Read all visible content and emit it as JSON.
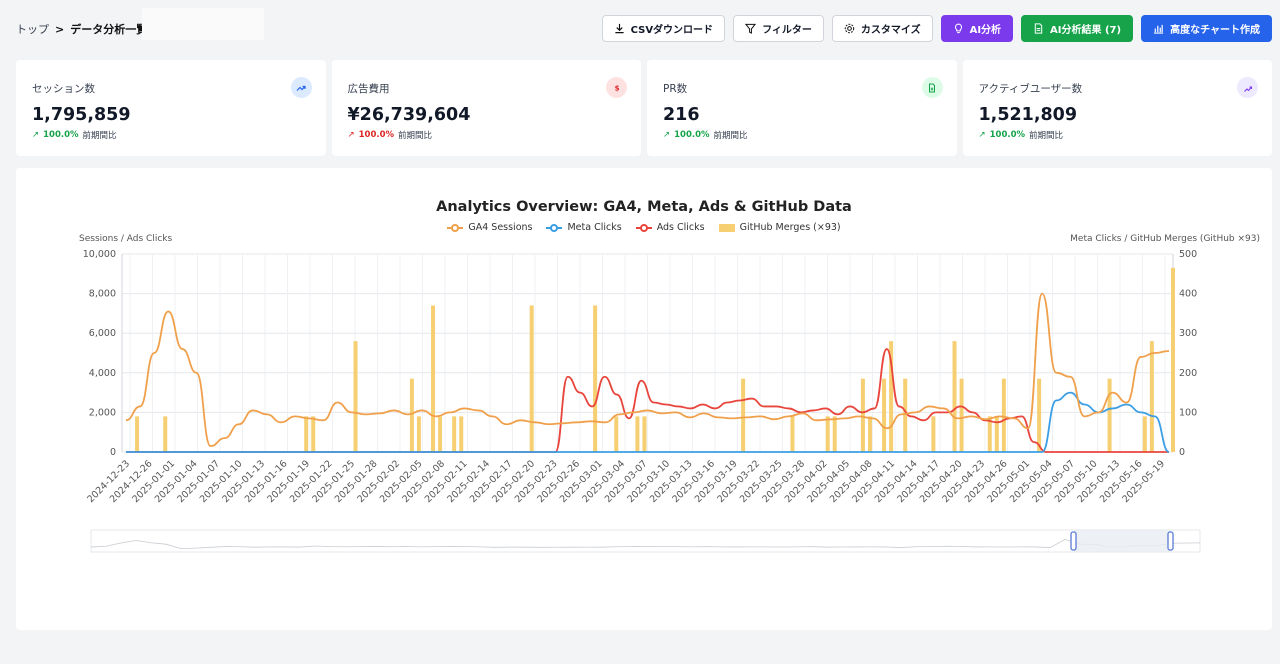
{
  "breadcrumb": {
    "home": "トップ",
    "sep1": ">",
    "current": "データ分析一覧",
    "sep2": ">"
  },
  "actions": {
    "csv": "CSVダウンロード",
    "filter": "フィルター",
    "customize": "カスタマイズ",
    "ai_analysis": "AI分析",
    "ai_results": "AI分析結果 (7)",
    "advanced_chart": "高度なチャート作成"
  },
  "kpis": [
    {
      "label": "セッション数",
      "value": "1,795,859",
      "change": "100.0%",
      "period": "前期間比",
      "trend": "up",
      "icon": "trending-up-icon",
      "color": "#2563eb",
      "bg": "#dbeafe"
    },
    {
      "label": "広告費用",
      "value": "¥26,739,604",
      "change": "100.0%",
      "period": "前期間比",
      "trend": "down",
      "icon": "dollar-icon",
      "color": "#dc2626",
      "bg": "#fee2e2"
    },
    {
      "label": "PR数",
      "value": "216",
      "change": "100.0%",
      "period": "前期間比",
      "trend": "up",
      "icon": "file-icon",
      "color": "#16a34a",
      "bg": "#dcfce7"
    },
    {
      "label": "アクティブユーザー数",
      "value": "1,521,809",
      "change": "100.0%",
      "period": "前期間比",
      "trend": "up",
      "icon": "users-trend-icon",
      "color": "#7c3aed",
      "bg": "#ede9fe"
    }
  ],
  "colors": {
    "ga4": "#f0a04b",
    "meta": "#3b9ee5",
    "ads": "#e8453c",
    "github": "#f6cf72"
  },
  "chart_data": {
    "type": "line",
    "title": "Analytics Overview: GA4, Meta, Ads & GitHub Data",
    "ylabel_left": "Sessions / Ads Clicks",
    "ylabel_right": "Meta Clicks / GitHub Merges (GitHub ×93)",
    "ylim_left": [
      0,
      10000
    ],
    "ylim_right": [
      0,
      500
    ],
    "yticks_left": [
      "0",
      "2,000",
      "4,000",
      "6,000",
      "8,000",
      "10,000"
    ],
    "yticks_right": [
      "0",
      "100",
      "200",
      "300",
      "400",
      "500"
    ],
    "x_ticks": [
      "2024-12-23",
      "2024-12-26",
      "2025-01-01",
      "2025-01-04",
      "2025-01-07",
      "2025-01-10",
      "2025-01-13",
      "2025-01-16",
      "2025-01-19",
      "2025-01-22",
      "2025-01-25",
      "2025-01-28",
      "2025-02-02",
      "2025-02-05",
      "2025-02-08",
      "2025-02-11",
      "2025-02-14",
      "2025-02-17",
      "2025-02-20",
      "2025-02-23",
      "2025-02-26",
      "2025-03-01",
      "2025-03-04",
      "2025-03-07",
      "2025-03-10",
      "2025-03-13",
      "2025-03-16",
      "2025-03-19",
      "2025-03-22",
      "2025-03-25",
      "2025-03-28",
      "2025-04-02",
      "2025-04-05",
      "2025-04-08",
      "2025-04-11",
      "2025-04-14",
      "2025-04-17",
      "2025-04-20",
      "2025-04-23",
      "2025-04-26",
      "2025-05-01",
      "2025-05-04",
      "2025-05-07",
      "2025-05-10",
      "2025-05-13",
      "2025-05-16",
      "2025-05-19"
    ],
    "grid": true,
    "legend_position": "top-center",
    "series": [
      {
        "name": "GA4 Sessions",
        "axis": "left",
        "values": [
          1600,
          2300,
          5000,
          7100,
          5200,
          4000,
          300,
          700,
          1400,
          2100,
          1900,
          1500,
          1800,
          1700,
          1600,
          2500,
          2000,
          1900,
          1950,
          2100,
          1900,
          2100,
          1800,
          2000,
          2200,
          2100,
          1800,
          1400,
          1600,
          1500,
          1400,
          1450,
          1500,
          1550,
          1500,
          1900,
          2000,
          2100,
          1950,
          2000,
          1750,
          1950,
          1750,
          1700,
          1750,
          1800,
          1650,
          1800,
          1950,
          1600,
          1650,
          1700,
          1800,
          1700,
          1200,
          1900,
          2000,
          2300,
          2200,
          1700,
          1800,
          1650,
          1800,
          1700,
          1200,
          8000,
          4000,
          3800,
          1800,
          2000,
          3000,
          2500,
          4800,
          5000,
          5100
        ]
      },
      {
        "name": "Meta Clicks",
        "axis": "right",
        "values": [
          0,
          0,
          0,
          0,
          0,
          0,
          0,
          0,
          0,
          0,
          0,
          0,
          0,
          0,
          0,
          0,
          0,
          0,
          0,
          0,
          0,
          0,
          0,
          0,
          0,
          0,
          0,
          0,
          0,
          0,
          0,
          0,
          0,
          0,
          0,
          0,
          0,
          0,
          0,
          0,
          0,
          0,
          0,
          0,
          0,
          0,
          0,
          0,
          0,
          0,
          0,
          0,
          0,
          0,
          0,
          0,
          0,
          0,
          0,
          0,
          0,
          0,
          0,
          0,
          0,
          0,
          130,
          150,
          120,
          100,
          110,
          120,
          100,
          90,
          0
        ]
      },
      {
        "name": "Ads Clicks",
        "axis": "left",
        "values": [
          0,
          0,
          0,
          0,
          0,
          0,
          0,
          0,
          0,
          0,
          0,
          0,
          0,
          0,
          0,
          0,
          0,
          0,
          0,
          0,
          0,
          0,
          0,
          0,
          0,
          0,
          0,
          0,
          0,
          0,
          0,
          0,
          0,
          0,
          0,
          0,
          3800,
          3000,
          2300,
          3800,
          2900,
          1700,
          3600,
          2500,
          2400,
          2300,
          2200,
          2400,
          2200,
          2500,
          2600,
          2700,
          2300,
          2300,
          2200,
          2000,
          2100,
          2200,
          1900,
          2300,
          2000,
          2200,
          5200,
          2300,
          1800,
          1600,
          2000,
          2000,
          2300,
          2000,
          1600,
          1500,
          1700,
          1800,
          500,
          0,
          0,
          0,
          0,
          0,
          0,
          0,
          0,
          0,
          0,
          0
        ]
      },
      {
        "name": "GitHub Merges (×93)",
        "axis": "right",
        "type": "bar",
        "values": [
          {
            "date": "2024-12-24",
            "v": 90
          },
          {
            "date": "2024-12-28",
            "v": 90
          },
          {
            "date": "2025-01-17",
            "v": 90
          },
          {
            "date": "2025-01-18",
            "v": 90
          },
          {
            "date": "2025-01-24",
            "v": 280
          },
          {
            "date": "2025-02-01",
            "v": 185
          },
          {
            "date": "2025-02-02",
            "v": 90
          },
          {
            "date": "2025-02-04",
            "v": 370
          },
          {
            "date": "2025-02-05",
            "v": 90
          },
          {
            "date": "2025-02-07",
            "v": 90
          },
          {
            "date": "2025-02-08",
            "v": 90
          },
          {
            "date": "2025-02-18",
            "v": 370
          },
          {
            "date": "2025-02-27",
            "v": 370
          },
          {
            "date": "2025-03-02",
            "v": 90
          },
          {
            "date": "2025-03-05",
            "v": 90
          },
          {
            "date": "2025-03-06",
            "v": 90
          },
          {
            "date": "2025-03-20",
            "v": 185
          },
          {
            "date": "2025-03-27",
            "v": 90
          },
          {
            "date": "2025-04-01",
            "v": 90
          },
          {
            "date": "2025-04-02",
            "v": 90
          },
          {
            "date": "2025-04-06",
            "v": 185
          },
          {
            "date": "2025-04-07",
            "v": 90
          },
          {
            "date": "2025-04-09",
            "v": 185
          },
          {
            "date": "2025-04-10",
            "v": 280
          },
          {
            "date": "2025-04-12",
            "v": 185
          },
          {
            "date": "2025-04-16",
            "v": 90
          },
          {
            "date": "2025-04-19",
            "v": 280
          },
          {
            "date": "2025-04-20",
            "v": 185
          },
          {
            "date": "2025-04-24",
            "v": 90
          },
          {
            "date": "2025-04-25",
            "v": 90
          },
          {
            "date": "2025-04-26",
            "v": 185
          },
          {
            "date": "2025-05-01",
            "v": 185
          },
          {
            "date": "2025-05-11",
            "v": 185
          },
          {
            "date": "2025-05-16",
            "v": 90
          },
          {
            "date": "2025-05-17",
            "v": 280
          },
          {
            "date": "2025-05-20",
            "v": 465
          }
        ]
      }
    ]
  }
}
